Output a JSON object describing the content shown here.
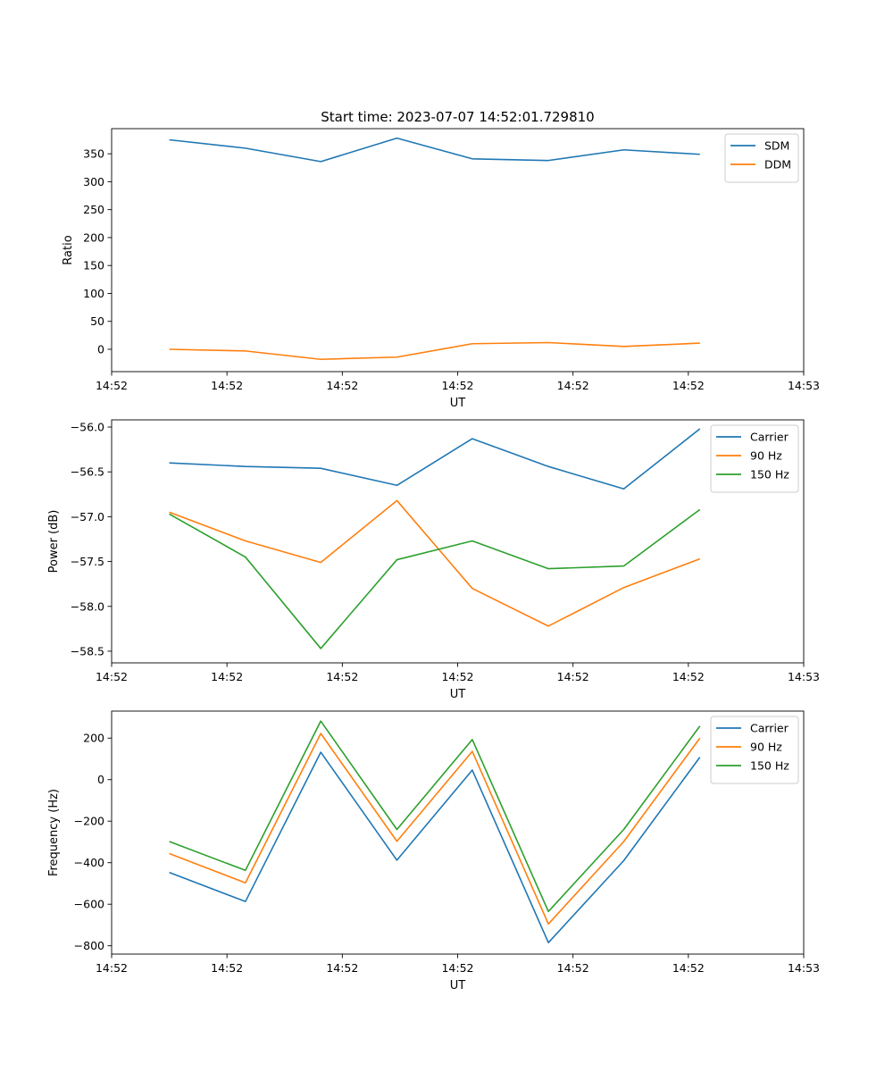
{
  "figure_title": "Start time: 2023-07-07 14:52:01.729810",
  "chart_data": [
    {
      "type": "line",
      "xlabel": "UT",
      "ylabel": "Ratio",
      "xlim": [
        0,
        9
      ],
      "ylim": [
        -40,
        395
      ],
      "xticks": [
        {
          "x": 0,
          "label": "14:52"
        },
        {
          "x": 1.5,
          "label": "14:52"
        },
        {
          "x": 3,
          "label": "14:52"
        },
        {
          "x": 4.5,
          "label": "14:52"
        },
        {
          "x": 6,
          "label": "14:52"
        },
        {
          "x": 7.5,
          "label": "14:52"
        },
        {
          "x": 9,
          "label": "14:53"
        }
      ],
      "yticks": [
        0,
        50,
        100,
        150,
        200,
        250,
        300,
        350
      ],
      "x": [
        0.75,
        1.74,
        2.72,
        3.71,
        4.69,
        5.68,
        6.66,
        7.65
      ],
      "series": [
        {
          "name": "SDM",
          "color": "#1f77b4",
          "values": [
            375,
            360,
            336,
            378,
            341,
            338,
            357,
            349
          ]
        },
        {
          "name": "DDM",
          "color": "#ff7f0e",
          "values": [
            0,
            -3,
            -18,
            -14,
            10,
            12,
            5,
            11
          ]
        }
      ]
    },
    {
      "type": "line",
      "xlabel": "UT",
      "ylabel": "Power (dB)",
      "xlim": [
        0,
        9
      ],
      "ylim": [
        -58.63,
        -55.92
      ],
      "xticks": [
        {
          "x": 0,
          "label": "14:52"
        },
        {
          "x": 1.5,
          "label": "14:52"
        },
        {
          "x": 3,
          "label": "14:52"
        },
        {
          "x": 4.5,
          "label": "14:52"
        },
        {
          "x": 6,
          "label": "14:52"
        },
        {
          "x": 7.5,
          "label": "14:52"
        },
        {
          "x": 9,
          "label": "14:53"
        }
      ],
      "yticks": [
        -58.5,
        -58.0,
        -57.5,
        -57.0,
        -56.5,
        -56.0
      ],
      "ytick_labels": [
        "−58.5",
        "−58.0",
        "−57.5",
        "−57.0",
        "−56.5",
        "−56.0"
      ],
      "x": [
        0.75,
        1.74,
        2.72,
        3.71,
        4.69,
        5.68,
        6.66,
        7.65
      ],
      "series": [
        {
          "name": "Carrier",
          "color": "#1f77b4",
          "values": [
            -56.4,
            -56.44,
            -56.46,
            -56.65,
            -56.13,
            -56.44,
            -56.69,
            -56.02
          ]
        },
        {
          "name": "90 Hz",
          "color": "#ff7f0e",
          "values": [
            -56.95,
            -57.27,
            -57.51,
            -56.82,
            -57.8,
            -58.22,
            -57.79,
            -57.47
          ]
        },
        {
          "name": "150 Hz",
          "color": "#2ca02c",
          "values": [
            -56.97,
            -57.45,
            -58.47,
            -57.48,
            -57.27,
            -57.58,
            -57.55,
            -56.92
          ]
        }
      ]
    },
    {
      "type": "line",
      "xlabel": "UT",
      "ylabel": "Frequency (Hz)",
      "xlim": [
        0,
        9
      ],
      "ylim": [
        -840,
        330
      ],
      "xticks": [
        {
          "x": 0,
          "label": "14:52"
        },
        {
          "x": 1.5,
          "label": "14:52"
        },
        {
          "x": 3,
          "label": "14:52"
        },
        {
          "x": 4.5,
          "label": "14:52"
        },
        {
          "x": 6,
          "label": "14:52"
        },
        {
          "x": 7.5,
          "label": "14:52"
        },
        {
          "x": 9,
          "label": "14:53"
        }
      ],
      "yticks": [
        -800,
        -600,
        -400,
        -200,
        0,
        200
      ],
      "ytick_labels": [
        "−800",
        "−600",
        "−400",
        "−200",
        "0",
        "200"
      ],
      "x": [
        0.75,
        1.74,
        2.72,
        3.71,
        4.69,
        5.68,
        6.66,
        7.65
      ],
      "series": [
        {
          "name": "Carrier",
          "color": "#1f77b4",
          "values": [
            -447,
            -587,
            132,
            -388,
            46,
            -785,
            -390,
            108
          ]
        },
        {
          "name": "90 Hz",
          "color": "#ff7f0e",
          "values": [
            -356,
            -497,
            222,
            -297,
            136,
            -695,
            -298,
            200
          ]
        },
        {
          "name": "150 Hz",
          "color": "#2ca02c",
          "values": [
            -298,
            -437,
            282,
            -240,
            193,
            -635,
            -240,
            258
          ]
        }
      ]
    }
  ]
}
